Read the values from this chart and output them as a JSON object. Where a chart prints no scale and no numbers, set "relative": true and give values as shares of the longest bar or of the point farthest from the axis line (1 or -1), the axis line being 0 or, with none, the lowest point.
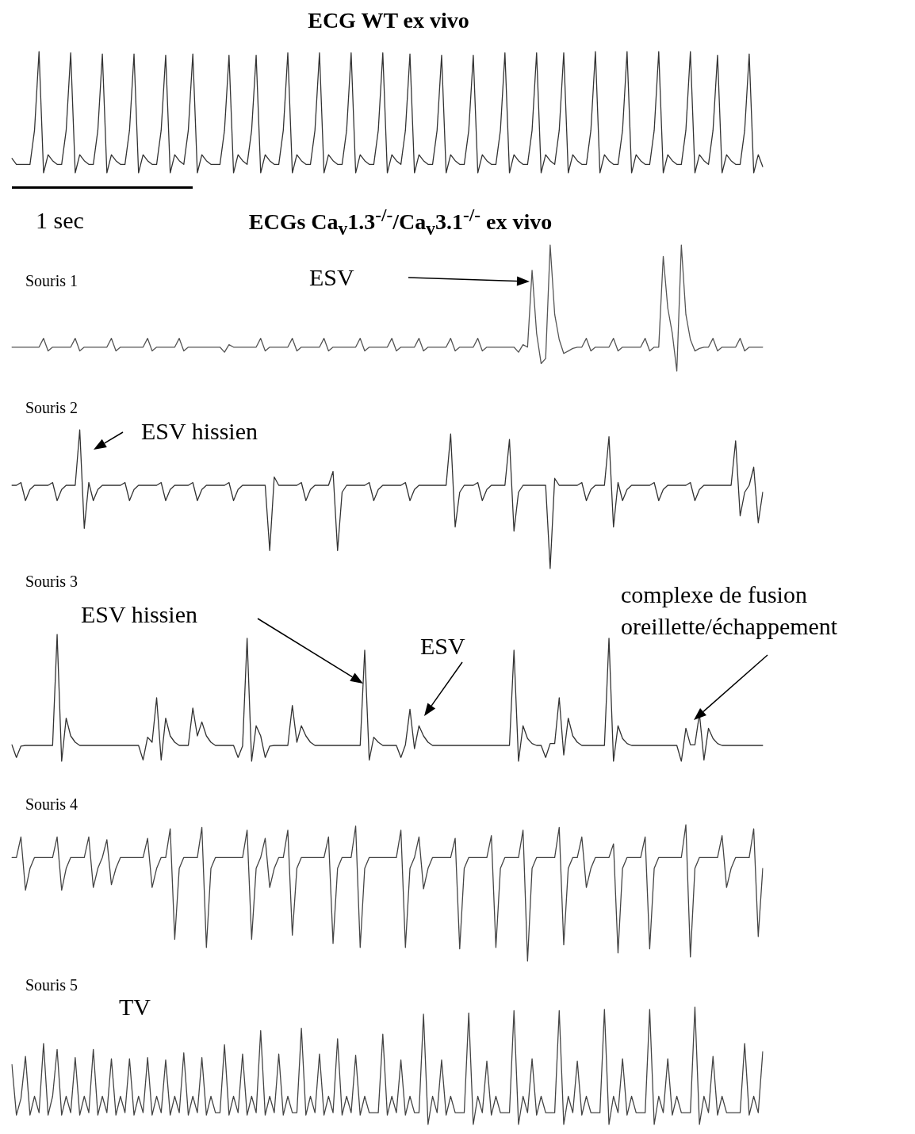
{
  "chart_data": [
    {
      "type": "line",
      "title": "ECG WT ex vivo",
      "relative": true,
      "marker": "none",
      "color": "#333333",
      "annotations": [
        "1 sec"
      ],
      "categories": [
        null,
        null,
        null,
        null,
        null,
        null,
        null,
        null,
        null,
        null,
        null,
        null,
        null,
        null,
        null,
        null,
        null,
        null,
        null,
        null,
        null,
        null,
        null,
        null,
        null,
        null,
        null,
        null,
        null,
        null,
        null,
        null,
        null,
        null,
        null,
        null,
        null,
        null,
        null,
        null,
        null,
        null,
        null,
        null,
        null,
        null,
        null,
        null,
        null,
        null,
        null,
        null,
        null,
        null,
        null,
        null,
        null,
        null,
        null,
        null,
        null,
        null,
        null,
        null,
        null,
        null,
        null,
        null,
        null,
        null,
        null,
        null,
        null,
        null,
        null,
        null,
        null,
        null,
        null,
        null,
        null,
        null,
        null,
        null,
        null,
        null,
        null,
        null,
        null,
        null,
        null,
        null,
        null,
        null,
        null,
        null,
        null,
        null,
        null,
        null,
        null,
        null,
        null,
        null,
        null,
        null,
        null,
        null,
        null,
        null,
        null,
        null,
        null,
        null,
        null,
        null,
        null,
        null,
        null,
        null,
        null,
        null,
        null,
        null,
        null,
        null,
        null,
        null,
        null,
        null,
        null,
        null,
        null,
        null,
        null,
        null,
        null,
        null,
        null,
        null,
        null,
        null,
        null,
        null,
        null,
        null,
        null,
        null,
        null,
        null,
        null,
        null,
        null,
        null,
        null,
        null,
        null,
        null,
        null,
        null,
        null,
        null,
        null,
        null,
        null,
        null,
        null
      ],
      "values": [
        0.12,
        0.07,
        0.07,
        0.07,
        0.07,
        0.35,
        1,
        0,
        0.15,
        0.1,
        0.07,
        0.07,
        0.35,
        0.99,
        0,
        0.15,
        0.1,
        0.07,
        0.07,
        0.35,
        0.98,
        0,
        0.15,
        0.1,
        0.07,
        0.07,
        0.35,
        0.98,
        0,
        0.15,
        0.1,
        0.07,
        0.07,
        0.35,
        0.97,
        0,
        0.15,
        0.1,
        0.07,
        0.35,
        0.98,
        0,
        0.15,
        0.1,
        0.07,
        0.07,
        0.07,
        0.35,
        0.97,
        0,
        0.15,
        0.1,
        0.07,
        0.35,
        0.97,
        0,
        0.15,
        0.1,
        0.07,
        0.07,
        0.35,
        0.99,
        0,
        0.15,
        0.1,
        0.07,
        0.07,
        0.35,
        0.99,
        0,
        0.15,
        0.1,
        0.07,
        0.07,
        0.35,
        0.99,
        0,
        0.15,
        0.1,
        0.07,
        0.07,
        0.35,
        0.99,
        0,
        0.15,
        0.1,
        0.07,
        0.35,
        0.98,
        0,
        0.15,
        0.1,
        0.07,
        0.07,
        0.35,
        0.97,
        0,
        0.15,
        0.1,
        0.07,
        0.07,
        0.35,
        0.97,
        0,
        0.15,
        0.1,
        0.07,
        0.07,
        0.35,
        0.99,
        0,
        0.15,
        0.1,
        0.07,
        0.07,
        0.35,
        0.99,
        0,
        0.15,
        0.1,
        0.07,
        0.35,
        0.99,
        0,
        0.15,
        0.1,
        0.07,
        0.07,
        0.35,
        1,
        0,
        0.15,
        0.1,
        0.07,
        0.07,
        0.35,
        1,
        0,
        0.15,
        0.1,
        0.07,
        0.07,
        0.35,
        1,
        0,
        0.15,
        0.1,
        0.07,
        0.07,
        0.35,
        1,
        0,
        0.15,
        0.1,
        0.07,
        0.35,
        0.97,
        0,
        0.15,
        0.1,
        0.07,
        0.07,
        0.35,
        0.98,
        0,
        0.15,
        0.05
      ]
    },
    {
      "type": "line",
      "title": "ECGs Ca$_{v}$1.3$^{-/-}$/Ca$_{v}$3.1$^{-/-}$ ex vivo",
      "subtitle": "Souris 1",
      "relative": true,
      "marker": "none",
      "color": "#555555",
      "annotations": [
        "ESV"
      ],
      "categories": [
        null,
        null,
        null,
        null,
        null,
        null,
        null,
        null,
        null,
        null,
        null,
        null,
        null,
        null,
        null,
        null,
        null,
        null,
        null,
        null,
        null,
        null,
        null,
        null,
        null,
        null,
        null,
        null,
        null,
        null,
        null,
        null,
        null,
        null,
        null,
        null,
        null,
        null,
        null,
        null,
        null,
        null,
        null,
        null,
        null,
        null,
        null,
        null,
        null,
        null,
        null,
        null,
        null,
        null,
        null,
        null,
        null,
        null,
        null,
        null,
        null,
        null,
        null,
        null,
        null,
        null,
        null,
        null,
        null,
        null,
        null,
        null,
        null,
        null,
        null,
        null,
        null,
        null,
        null,
        null,
        null,
        null,
        null,
        null,
        null,
        null,
        null,
        null,
        null,
        null,
        null,
        null,
        null,
        null,
        null,
        null,
        null,
        null,
        null,
        null,
        null,
        null,
        null,
        null,
        null,
        null,
        null,
        null,
        null,
        null,
        null,
        null,
        null,
        null,
        null,
        null,
        null,
        null,
        null,
        null,
        null,
        null,
        null,
        null,
        null,
        null,
        null,
        null,
        null,
        null,
        null,
        null,
        null,
        null,
        null,
        null,
        null,
        null,
        null,
        null,
        null,
        null,
        null,
        null,
        null,
        null,
        null,
        null,
        null,
        null,
        null,
        null,
        null,
        null,
        null,
        null,
        null,
        null,
        null,
        null,
        null,
        null,
        null,
        null,
        null,
        null,
        null
      ],
      "values": [
        0.19,
        0.19,
        0.19,
        0.19,
        0.19,
        0.19,
        0.19,
        0.26,
        0.16,
        0.19,
        0.19,
        0.19,
        0.19,
        0.19,
        0.26,
        0.16,
        0.19,
        0.19,
        0.19,
        0.19,
        0.19,
        0.19,
        0.26,
        0.16,
        0.19,
        0.19,
        0.19,
        0.19,
        0.19,
        0.19,
        0.26,
        0.16,
        0.19,
        0.19,
        0.19,
        0.19,
        0.19,
        0.26,
        0.16,
        0.19,
        0.19,
        0.19,
        0.19,
        0.19,
        0.19,
        0.19,
        0.19,
        0.15,
        0.21,
        0.19,
        0.19,
        0.19,
        0.19,
        0.19,
        0.19,
        0.26,
        0.16,
        0.19,
        0.19,
        0.19,
        0.19,
        0.19,
        0.26,
        0.16,
        0.19,
        0.19,
        0.19,
        0.19,
        0.19,
        0.26,
        0.16,
        0.19,
        0.19,
        0.19,
        0.19,
        0.19,
        0.19,
        0.26,
        0.16,
        0.19,
        0.19,
        0.19,
        0.19,
        0.19,
        0.26,
        0.16,
        0.19,
        0.19,
        0.19,
        0.19,
        0.26,
        0.16,
        0.19,
        0.19,
        0.19,
        0.19,
        0.19,
        0.26,
        0.16,
        0.19,
        0.19,
        0.19,
        0.19,
        0.26,
        0.16,
        0.19,
        0.19,
        0.19,
        0.19,
        0.19,
        0.19,
        0.19,
        0.15,
        0.21,
        0.19,
        0.8,
        0.3,
        0.06,
        0.1,
        1,
        0.45,
        0.25,
        0.14,
        0.16,
        0.18,
        0.19,
        0.19,
        0.26,
        0.16,
        0.19,
        0.19,
        0.19,
        0.19,
        0.26,
        0.16,
        0.19,
        0.19,
        0.19,
        0.19,
        0.19,
        0.26,
        0.16,
        0.19,
        0.19,
        0.91,
        0.5,
        0.3,
        0,
        1,
        0.45,
        0.25,
        0.16,
        0.18,
        0.19,
        0.19,
        0.26,
        0.16,
        0.19,
        0.19,
        0.19,
        0.19,
        0.26,
        0.16,
        0.19,
        0.19,
        0.19,
        0.19
      ]
    },
    {
      "type": "line",
      "subtitle": "Souris 2",
      "relative": true,
      "marker": "none",
      "color": "#333333",
      "annotations": [
        "ESV hissien"
      ],
      "categories": [
        null,
        null,
        null,
        null,
        null,
        null,
        null,
        null,
        null,
        null,
        null,
        null,
        null,
        null,
        null,
        null,
        null,
        null,
        null,
        null,
        null,
        null,
        null,
        null,
        null,
        null,
        null,
        null,
        null,
        null,
        null,
        null,
        null,
        null,
        null,
        null,
        null,
        null,
        null,
        null,
        null,
        null,
        null,
        null,
        null,
        null,
        null,
        null,
        null,
        null,
        null,
        null,
        null,
        null,
        null,
        null,
        null,
        null,
        null,
        null,
        null,
        null,
        null,
        null,
        null,
        null,
        null,
        null,
        null,
        null,
        null,
        null,
        null,
        null,
        null,
        null,
        null,
        null,
        null,
        null,
        null,
        null,
        null,
        null,
        null,
        null,
        null,
        null,
        null,
        null,
        null,
        null,
        null,
        null,
        null,
        null,
        null,
        null,
        null,
        null,
        null,
        null,
        null,
        null,
        null,
        null,
        null,
        null,
        null,
        null,
        null,
        null,
        null,
        null,
        null,
        null,
        null,
        null,
        null,
        null,
        null,
        null,
        null,
        null,
        null,
        null,
        null,
        null,
        null,
        null,
        null,
        null,
        null,
        null,
        null,
        null,
        null,
        null,
        null,
        null,
        null,
        null,
        null,
        null,
        null,
        null,
        null,
        null,
        null,
        null,
        null,
        null,
        null,
        null,
        null,
        null,
        null,
        null,
        null,
        null,
        null,
        null,
        null,
        null,
        null,
        null,
        null
      ],
      "values": [
        0.6,
        0.6,
        0.62,
        0.49,
        0.57,
        0.6,
        0.6,
        0.6,
        0.6,
        0.62,
        0.49,
        0.57,
        0.6,
        0.6,
        0.6,
        1,
        0.29,
        0.62,
        0.49,
        0.57,
        0.6,
        0.6,
        0.6,
        0.6,
        0.6,
        0.62,
        0.49,
        0.57,
        0.6,
        0.6,
        0.6,
        0.6,
        0.6,
        0.62,
        0.49,
        0.57,
        0.6,
        0.6,
        0.6,
        0.6,
        0.62,
        0.49,
        0.57,
        0.6,
        0.6,
        0.6,
        0.6,
        0.6,
        0.62,
        0.49,
        0.57,
        0.6,
        0.6,
        0.6,
        0.6,
        0.6,
        0.6,
        0.13,
        0.66,
        0.6,
        0.6,
        0.6,
        0.6,
        0.6,
        0.62,
        0.49,
        0.57,
        0.6,
        0.6,
        0.6,
        0.6,
        0.7,
        0.13,
        0.55,
        0.6,
        0.6,
        0.6,
        0.6,
        0.6,
        0.62,
        0.49,
        0.57,
        0.6,
        0.6,
        0.6,
        0.6,
        0.6,
        0.62,
        0.49,
        0.57,
        0.6,
        0.6,
        0.6,
        0.6,
        0.6,
        0.6,
        0.6,
        0.97,
        0.3,
        0.55,
        0.6,
        0.6,
        0.6,
        0.62,
        0.49,
        0.57,
        0.6,
        0.6,
        0.6,
        0.6,
        0.93,
        0.27,
        0.55,
        0.6,
        0.6,
        0.6,
        0.6,
        0.6,
        0.6,
        0,
        0.65,
        0.6,
        0.6,
        0.6,
        0.6,
        0.6,
        0.62,
        0.49,
        0.57,
        0.6,
        0.6,
        0.6,
        0.95,
        0.3,
        0.62,
        0.49,
        0.57,
        0.6,
        0.6,
        0.6,
        0.6,
        0.6,
        0.62,
        0.49,
        0.57,
        0.6,
        0.6,
        0.6,
        0.6,
        0.6,
        0.62,
        0.49,
        0.57,
        0.6,
        0.6,
        0.6,
        0.6,
        0.6,
        0.6,
        0.6,
        0.92,
        0.38,
        0.55,
        0.6,
        0.73,
        0.33,
        0.55
      ]
    },
    {
      "type": "line",
      "subtitle": "Souris 3",
      "relative": true,
      "marker": "none",
      "color": "#333333",
      "annotations": [
        "ESV hissien",
        "ESV",
        "complexe de fusion oreillette/échappement"
      ],
      "categories": [
        null,
        null,
        null,
        null,
        null,
        null,
        null,
        null,
        null,
        null,
        null,
        null,
        null,
        null,
        null,
        null,
        null,
        null,
        null,
        null,
        null,
        null,
        null,
        null,
        null,
        null,
        null,
        null,
        null,
        null,
        null,
        null,
        null,
        null,
        null,
        null,
        null,
        null,
        null,
        null,
        null,
        null,
        null,
        null,
        null,
        null,
        null,
        null,
        null,
        null,
        null,
        null,
        null,
        null,
        null,
        null,
        null,
        null,
        null,
        null,
        null,
        null,
        null,
        null,
        null,
        null,
        null,
        null,
        null,
        null,
        null,
        null,
        null,
        null,
        null,
        null,
        null,
        null,
        null,
        null,
        null,
        null,
        null,
        null,
        null,
        null,
        null,
        null,
        null,
        null,
        null,
        null,
        null,
        null,
        null,
        null,
        null,
        null,
        null,
        null,
        null,
        null,
        null,
        null,
        null,
        null,
        null,
        null,
        null,
        null,
        null,
        null,
        null,
        null,
        null,
        null,
        null,
        null,
        null,
        null,
        null,
        null,
        null,
        null,
        null,
        null,
        null,
        null,
        null,
        null,
        null,
        null,
        null,
        null,
        null,
        null,
        null,
        null,
        null,
        null,
        null,
        null,
        null,
        null,
        null,
        null,
        null,
        null,
        null,
        null,
        null,
        null,
        null,
        null,
        null,
        null,
        null,
        null,
        null,
        null,
        null,
        null,
        null,
        null,
        null,
        null,
        null
      ],
      "values": [
        0.13,
        0.03,
        0.12,
        0.125,
        0.125,
        0.125,
        0.125,
        0.125,
        0.125,
        0.125,
        1,
        0,
        0.34,
        0.2,
        0.15,
        0.125,
        0.125,
        0.125,
        0.125,
        0.125,
        0.125,
        0.125,
        0.125,
        0.125,
        0.125,
        0.125,
        0.125,
        0.125,
        0.125,
        0.01,
        0.19,
        0.15,
        0.5,
        0.01,
        0.34,
        0.2,
        0.15,
        0.125,
        0.125,
        0.125,
        0.42,
        0.2,
        0.31,
        0.2,
        0.15,
        0.125,
        0.125,
        0.125,
        0.125,
        0.125,
        0.03,
        0.12,
        0.97,
        0,
        0.28,
        0.2,
        0.03,
        0.12,
        0.125,
        0.125,
        0.125,
        0.125,
        0.44,
        0.15,
        0.28,
        0.2,
        0.15,
        0.125,
        0.125,
        0.125,
        0.125,
        0.125,
        0.125,
        0.125,
        0.125,
        0.125,
        0.125,
        0.125,
        0.875,
        0.01,
        0.19,
        0.15,
        0.125,
        0.125,
        0.125,
        0.125,
        0.03,
        0.13,
        0.41,
        0.1,
        0.28,
        0.2,
        0.15,
        0.125,
        0.125,
        0.125,
        0.125,
        0.125,
        0.125,
        0.125,
        0.125,
        0.125,
        0.125,
        0.125,
        0.125,
        0.125,
        0.125,
        0.125,
        0.125,
        0.125,
        0.125,
        0.875,
        0,
        0.28,
        0.18,
        0.14,
        0.125,
        0.125,
        0.03,
        0.14,
        0.14,
        0.5,
        0.05,
        0.34,
        0.2,
        0.15,
        0.125,
        0.125,
        0.125,
        0.125,
        0.125,
        0.125,
        0.97,
        0,
        0.28,
        0.18,
        0.14,
        0.125,
        0.125,
        0.125,
        0.125,
        0.125,
        0.125,
        0.125,
        0.125,
        0.125,
        0.125,
        0.125,
        0,
        0.26,
        0.13,
        0.13,
        0.375,
        0.01,
        0.26,
        0.18,
        0.14,
        0.125,
        0.125,
        0.125,
        0.125,
        0.125,
        0.125,
        0.125,
        0.125,
        0.125,
        0.125
      ]
    },
    {
      "type": "line",
      "subtitle": "Souris 4",
      "relative": true,
      "marker": "none",
      "color": "#444444",
      "categories": [
        null,
        null,
        null,
        null,
        null,
        null,
        null,
        null,
        null,
        null,
        null,
        null,
        null,
        null,
        null,
        null,
        null,
        null,
        null,
        null,
        null,
        null,
        null,
        null,
        null,
        null,
        null,
        null,
        null,
        null,
        null,
        null,
        null,
        null,
        null,
        null,
        null,
        null,
        null,
        null,
        null,
        null,
        null,
        null,
        null,
        null,
        null,
        null,
        null,
        null,
        null,
        null,
        null,
        null,
        null,
        null,
        null,
        null,
        null,
        null,
        null,
        null,
        null,
        null,
        null,
        null,
        null,
        null,
        null,
        null,
        null,
        null,
        null,
        null,
        null,
        null,
        null,
        null,
        null,
        null,
        null,
        null,
        null,
        null,
        null,
        null,
        null,
        null,
        null,
        null,
        null,
        null,
        null,
        null,
        null,
        null,
        null,
        null,
        null,
        null,
        null,
        null,
        null,
        null,
        null,
        null,
        null,
        null,
        null,
        null,
        null,
        null,
        null,
        null,
        null,
        null,
        null,
        null,
        null,
        null,
        null,
        null,
        null,
        null,
        null,
        null,
        null,
        null,
        null,
        null,
        null,
        null,
        null,
        null,
        null,
        null,
        null,
        null,
        null,
        null,
        null,
        null,
        null,
        null,
        null,
        null,
        null,
        null,
        null,
        null,
        null,
        null,
        null,
        null,
        null,
        null,
        null,
        null,
        null,
        null,
        null,
        null,
        null,
        null,
        null,
        null,
        null
      ],
      "values": [
        0.76,
        0.76,
        0.91,
        0.52,
        0.68,
        0.76,
        0.76,
        0.76,
        0.76,
        0.76,
        0.91,
        0.52,
        0.68,
        0.76,
        0.76,
        0.76,
        0.76,
        0.91,
        0.54,
        0.68,
        0.76,
        0.89,
        0.56,
        0.68,
        0.76,
        0.76,
        0.76,
        0.76,
        0.76,
        0.76,
        0.9,
        0.54,
        0.68,
        0.76,
        0.76,
        0.97,
        0.16,
        0.68,
        0.76,
        0.76,
        0.76,
        0.76,
        0.98,
        0.1,
        0.68,
        0.76,
        0.76,
        0.76,
        0.76,
        0.76,
        0.76,
        0.76,
        0.96,
        0.16,
        0.68,
        0.76,
        0.9,
        0.54,
        0.68,
        0.76,
        0.76,
        0.96,
        0.19,
        0.68,
        0.76,
        0.76,
        0.76,
        0.76,
        0.76,
        0.76,
        0.91,
        0.13,
        0.68,
        0.76,
        0.76,
        0.76,
        0.99,
        0.1,
        0.68,
        0.76,
        0.76,
        0.76,
        0.76,
        0.76,
        0.76,
        0.76,
        0.96,
        0.1,
        0.68,
        0.76,
        0.91,
        0.53,
        0.68,
        0.76,
        0.76,
        0.76,
        0.76,
        0.76,
        0.9,
        0.09,
        0.68,
        0.76,
        0.76,
        0.76,
        0.76,
        0.76,
        0.92,
        0.1,
        0.68,
        0.76,
        0.76,
        0.76,
        0.76,
        0.96,
        0,
        0.68,
        0.76,
        0.76,
        0.76,
        0.76,
        0.76,
        0.98,
        0.12,
        0.68,
        0.76,
        0.76,
        0.91,
        0.54,
        0.68,
        0.76,
        0.76,
        0.76,
        0.76,
        0.86,
        0.06,
        0.68,
        0.76,
        0.76,
        0.76,
        0.76,
        0.91,
        0.09,
        0.68,
        0.76,
        0.76,
        0.76,
        0.76,
        0.76,
        0.76,
        1,
        0.03,
        0.68,
        0.76,
        0.76,
        0.76,
        0.76,
        0.76,
        0.92,
        0.54,
        0.68,
        0.76,
        0.76,
        0.76,
        0.76,
        0.97,
        0.18,
        0.68
      ]
    },
    {
      "type": "line",
      "subtitle": "Souris 5",
      "relative": true,
      "marker": "none",
      "color": "#444444",
      "annotations": [
        "TV"
      ],
      "categories": [
        null,
        null,
        null,
        null,
        null,
        null,
        null,
        null,
        null,
        null,
        null,
        null,
        null,
        null,
        null,
        null,
        null,
        null,
        null,
        null,
        null,
        null,
        null,
        null,
        null,
        null,
        null,
        null,
        null,
        null,
        null,
        null,
        null,
        null,
        null,
        null,
        null,
        null,
        null,
        null,
        null,
        null,
        null,
        null,
        null,
        null,
        null,
        null,
        null,
        null,
        null,
        null,
        null,
        null,
        null,
        null,
        null,
        null,
        null,
        null,
        null,
        null,
        null,
        null,
        null,
        null,
        null,
        null,
        null,
        null,
        null,
        null,
        null,
        null,
        null,
        null,
        null,
        null,
        null,
        null,
        null,
        null,
        null,
        null,
        null,
        null,
        null,
        null,
        null,
        null,
        null,
        null,
        null,
        null,
        null,
        null,
        null,
        null,
        null,
        null,
        null,
        null,
        null,
        null,
        null,
        null,
        null,
        null,
        null,
        null,
        null,
        null,
        null,
        null,
        null,
        null,
        null,
        null,
        null,
        null,
        null,
        null,
        null,
        null,
        null,
        null,
        null,
        null,
        null,
        null,
        null,
        null,
        null,
        null,
        null,
        null,
        null,
        null,
        null,
        null,
        null,
        null,
        null,
        null,
        null,
        null,
        null,
        null,
        null,
        null,
        null,
        null,
        null,
        null,
        null,
        null,
        null,
        null,
        null,
        null,
        null,
        null,
        null,
        null,
        null,
        null,
        null
      ],
      "values": [
        0.51,
        0.08,
        0.22,
        0.58,
        0.08,
        0.24,
        0.1,
        0.69,
        0.08,
        0.24,
        0.64,
        0.08,
        0.24,
        0.1,
        0.57,
        0.08,
        0.24,
        0.1,
        0.64,
        0.08,
        0.24,
        0.1,
        0.56,
        0.08,
        0.24,
        0.1,
        0.56,
        0.08,
        0.24,
        0.1,
        0.57,
        0.08,
        0.24,
        0.1,
        0.55,
        0.08,
        0.24,
        0.1,
        0.61,
        0.08,
        0.24,
        0.1,
        0.57,
        0.08,
        0.24,
        0.1,
        0.1,
        0.68,
        0.08,
        0.24,
        0.1,
        0.6,
        0.08,
        0.24,
        0.1,
        0.8,
        0.08,
        0.24,
        0.1,
        0.6,
        0.08,
        0.24,
        0.1,
        0.1,
        0.82,
        0.08,
        0.24,
        0.1,
        0.6,
        0.08,
        0.24,
        0.1,
        0.73,
        0.08,
        0.24,
        0.1,
        0.59,
        0.08,
        0.24,
        0.1,
        0.1,
        0.1,
        0.77,
        0.08,
        0.24,
        0.1,
        0.55,
        0.08,
        0.24,
        0.1,
        0.1,
        0.94,
        0,
        0.24,
        0.1,
        0.55,
        0.08,
        0.24,
        0.1,
        0.1,
        0.1,
        0.95,
        0,
        0.24,
        0.1,
        0.54,
        0.08,
        0.24,
        0.1,
        0.1,
        0.1,
        0.97,
        0,
        0.24,
        0.1,
        0.56,
        0.08,
        0.24,
        0.1,
        0.1,
        0.1,
        0.97,
        0,
        0.24,
        0.1,
        0.54,
        0.08,
        0.24,
        0.1,
        0.1,
        0.1,
        0.98,
        0,
        0.24,
        0.1,
        0.56,
        0.08,
        0.24,
        0.1,
        0.1,
        0.1,
        0.98,
        0,
        0.24,
        0.1,
        0.56,
        0.08,
        0.24,
        0.1,
        0.1,
        0.1,
        1,
        0,
        0.24,
        0.1,
        0.58,
        0.08,
        0.24,
        0.1,
        0.1,
        0.1,
        0.1,
        0.69,
        0.08,
        0.24,
        0.1,
        0.62
      ]
    }
  ]
}
